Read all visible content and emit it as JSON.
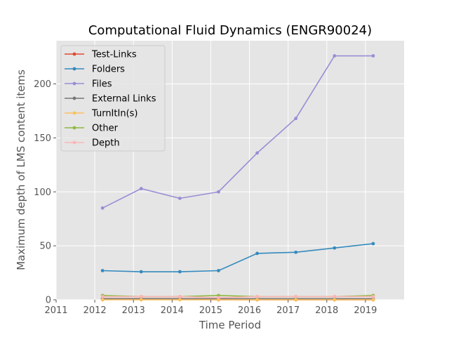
{
  "chart_data": {
    "type": "line",
    "title": "Computational Fluid Dynamics (ENGR90024)",
    "xlabel": "Time Period",
    "ylabel": "Maximum depth of LMS content items",
    "xlim": [
      2011,
      2020
    ],
    "ylim": [
      0,
      240
    ],
    "xticks": [
      2011,
      2012,
      2013,
      2014,
      2015,
      2016,
      2017,
      2018,
      2019
    ],
    "xtick_labels": [
      "2011",
      "2012",
      "2013",
      "2014",
      "2015",
      "2016",
      "2017",
      "2018",
      "2019"
    ],
    "yticks": [
      0,
      50,
      100,
      150,
      200
    ],
    "ytick_labels": [
      "0",
      "50",
      "100",
      "150",
      "200"
    ],
    "grid": true,
    "legend_position": "upper-left",
    "x": [
      2012.2,
      2013.2,
      2014.2,
      2015.2,
      2016.2,
      2017.2,
      2018.2,
      2019.2
    ],
    "series": [
      {
        "name": "Test-Links",
        "color": "#E24A33",
        "values": [
          1,
          1,
          1,
          0,
          0,
          0,
          0,
          0
        ]
      },
      {
        "name": "Folders",
        "color": "#348ABD",
        "values": [
          27,
          26,
          26,
          27,
          43,
          44,
          48,
          52
        ]
      },
      {
        "name": "Files",
        "color": "#988ED5",
        "values": [
          85,
          103,
          94,
          100,
          136,
          168,
          226,
          226
        ]
      },
      {
        "name": "External Links",
        "color": "#777777",
        "values": [
          1,
          1,
          1,
          1,
          1,
          1,
          1,
          1
        ]
      },
      {
        "name": "TurnItIn(s)",
        "color": "#FBC15E",
        "values": [
          0,
          0,
          0,
          0,
          0,
          0,
          0,
          0
        ]
      },
      {
        "name": "Other",
        "color": "#8EBA42",
        "values": [
          4,
          3,
          3,
          4,
          3,
          3,
          3,
          4
        ]
      },
      {
        "name": "Depth",
        "color": "#FFB5B8",
        "values": [
          3,
          3,
          3,
          2,
          3,
          3,
          3,
          3
        ]
      }
    ]
  }
}
